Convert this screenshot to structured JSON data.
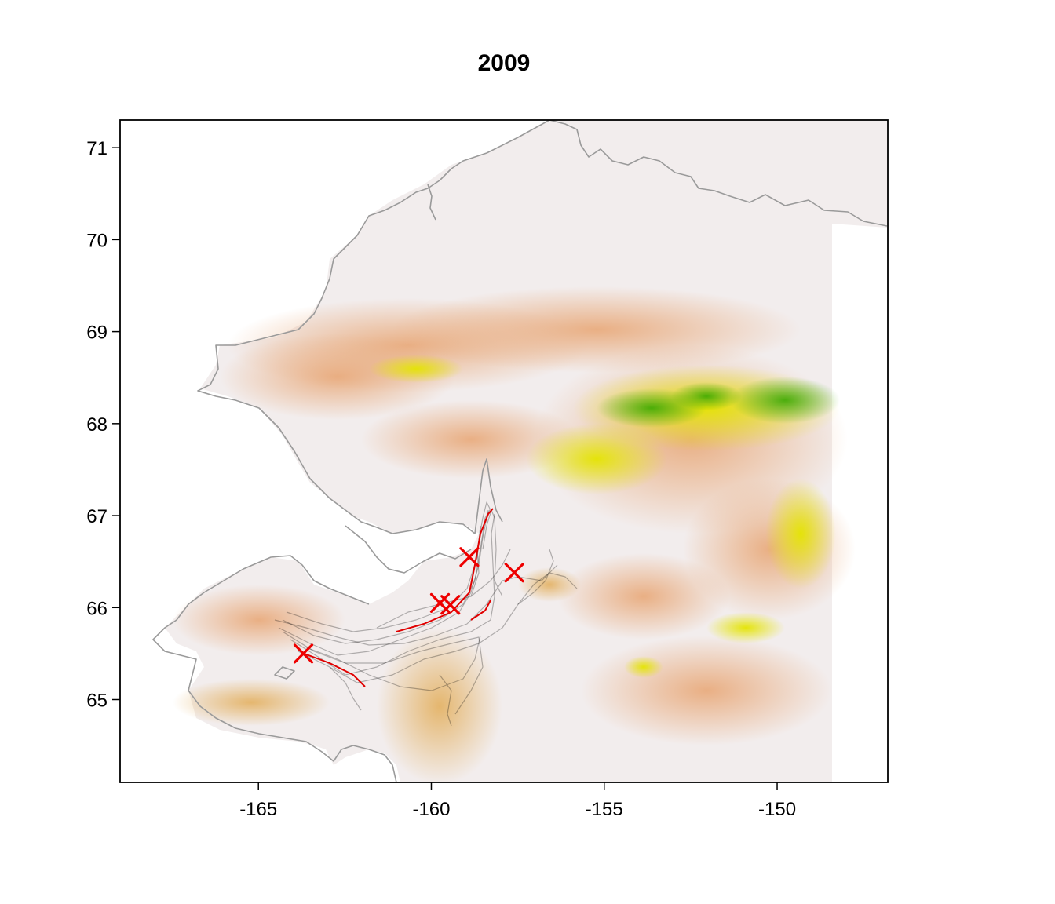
{
  "map": {
    "title": "2009",
    "x_ticks": [
      -165,
      -160,
      -155,
      -150
    ],
    "y_ticks": [
      65,
      66,
      67,
      68,
      69,
      70,
      71
    ],
    "xlim": [
      -169.0,
      -146.8
    ],
    "ylim": [
      64.1,
      71.3
    ],
    "colors": {
      "low": "#f3eeee",
      "mid": "#e9b08a",
      "high_yellow": "#e6e600",
      "high_green": "#44bb00",
      "coastline": "#9a9a9a",
      "track": "#000000",
      "highlight_track": "#e00000",
      "marker": "#ee0000"
    },
    "markers": [
      {
        "lon": -163.7,
        "lat": 65.5
      },
      {
        "lon": -158.9,
        "lat": 66.55
      },
      {
        "lon": -157.6,
        "lat": 66.38
      },
      {
        "lon": -159.75,
        "lat": 66.05
      },
      {
        "lon": -159.45,
        "lat": 66.03
      }
    ]
  }
}
